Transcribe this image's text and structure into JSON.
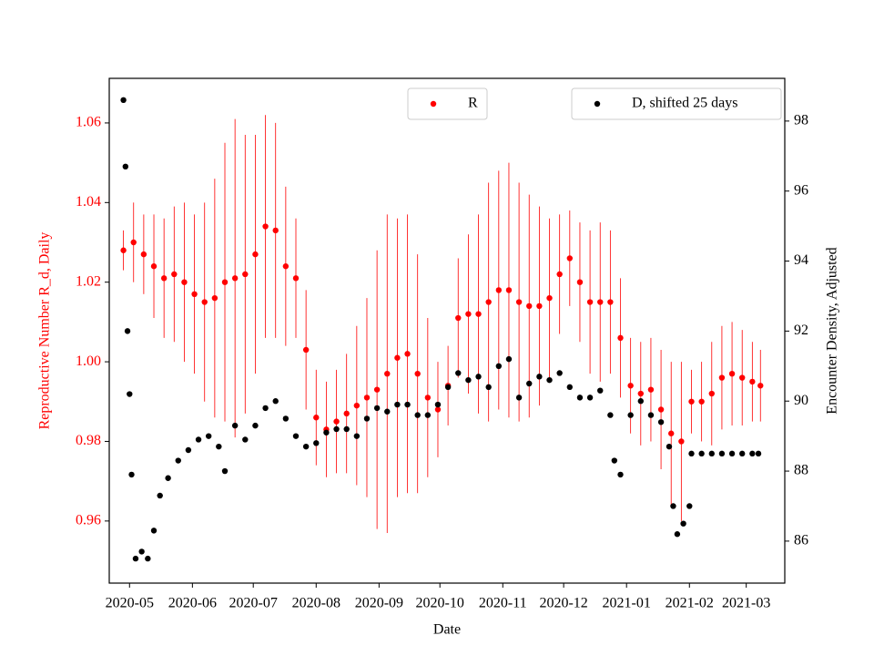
{
  "chart_data": {
    "type": "scatter",
    "x_label": "Date",
    "y_label": "Reproductive Number R_d, Daily",
    "y2_label": "Encounter Density, Adjusted",
    "xlim": [
      "2020-04-21",
      "2021-03-20"
    ],
    "xticks": [
      "2020-05",
      "2020-06",
      "2020-07",
      "2020-08",
      "2020-09",
      "2020-10",
      "2020-11",
      "2020-12",
      "2021-01",
      "2021-02",
      "2021-03"
    ],
    "ylim": [
      0.9444,
      1.0712
    ],
    "yticks": [
      0.96,
      0.98,
      {
        "value": 1.0,
        "label": "1.00"
      },
      1.02,
      1.04,
      1.06
    ],
    "y2lim": [
      84.8,
      99.22
    ],
    "y2ticks": [
      86,
      88,
      90,
      92,
      94,
      96,
      98
    ],
    "y_color": "#ff0000",
    "series": [
      {
        "name": "R",
        "color": "#ff0000",
        "legend": "upper center",
        "x": [
          "2020-04-28",
          "2020-05-03",
          "2020-05-08",
          "2020-05-13",
          "2020-05-18",
          "2020-05-23",
          "2020-05-28",
          "2020-06-02",
          "2020-06-07",
          "2020-06-12",
          "2020-06-17",
          "2020-06-22",
          "2020-06-27",
          "2020-07-02",
          "2020-07-07",
          "2020-07-12",
          "2020-07-17",
          "2020-07-22",
          "2020-07-27",
          "2020-08-01",
          "2020-08-06",
          "2020-08-11",
          "2020-08-16",
          "2020-08-21",
          "2020-08-26",
          "2020-08-31",
          "2020-09-05",
          "2020-09-10",
          "2020-09-15",
          "2020-09-20",
          "2020-09-25",
          "2020-09-30",
          "2020-10-05",
          "2020-10-10",
          "2020-10-15",
          "2020-10-20",
          "2020-10-25",
          "2020-10-30",
          "2020-11-04",
          "2020-11-09",
          "2020-11-14",
          "2020-11-19",
          "2020-11-24",
          "2020-11-29",
          "2020-12-04",
          "2020-12-09",
          "2020-12-14",
          "2020-12-19",
          "2020-12-24",
          "2020-12-29",
          "2021-01-03",
          "2021-01-08",
          "2021-01-13",
          "2021-01-18",
          "2021-01-23",
          "2021-01-28",
          "2021-02-02",
          "2021-02-07",
          "2021-02-12",
          "2021-02-17",
          "2021-02-22",
          "2021-02-27",
          "2021-03-04",
          "2021-03-08"
        ],
        "values": [
          1.028,
          1.03,
          1.027,
          1.024,
          1.021,
          1.022,
          1.02,
          1.017,
          1.015,
          1.016,
          1.02,
          1.021,
          1.022,
          1.027,
          1.034,
          1.033,
          1.024,
          1.021,
          1.003,
          0.986,
          0.983,
          0.985,
          0.987,
          0.989,
          0.991,
          0.993,
          0.997,
          1.001,
          1.002,
          0.997,
          0.991,
          0.988,
          0.994,
          1.011,
          1.012,
          1.012,
          1.015,
          1.018,
          1.018,
          1.015,
          1.014,
          1.014,
          1.016,
          1.022,
          1.026,
          1.02,
          1.015,
          1.015,
          1.015,
          1.006,
          0.994,
          0.992,
          0.993,
          0.988,
          0.982,
          0.98,
          0.99,
          0.99,
          0.992,
          0.996,
          0.997,
          0.996,
          0.995,
          0.994
        ],
        "errors": [
          0.005,
          0.01,
          0.01,
          0.013,
          0.015,
          0.017,
          0.02,
          0.02,
          0.025,
          0.03,
          0.035,
          0.04,
          0.035,
          0.03,
          0.028,
          0.027,
          0.02,
          0.015,
          0.015,
          0.012,
          0.012,
          0.013,
          0.015,
          0.02,
          0.025,
          0.035,
          0.04,
          0.035,
          0.035,
          0.03,
          0.02,
          0.012,
          0.01,
          0.015,
          0.02,
          0.025,
          0.03,
          0.03,
          0.032,
          0.03,
          0.028,
          0.025,
          0.02,
          0.015,
          0.012,
          0.015,
          0.018,
          0.02,
          0.018,
          0.015,
          0.012,
          0.013,
          0.013,
          0.015,
          0.018,
          0.02,
          0.008,
          0.01,
          0.013,
          0.013,
          0.013,
          0.012,
          0.01,
          0.009
        ]
      },
      {
        "name": "D, shifted 25 days",
        "color": "#000000",
        "axis": "y2",
        "legend": "upper right",
        "x": [
          "2020-04-28",
          "2020-04-29",
          "2020-04-30",
          "2020-05-01",
          "2020-05-02",
          "2020-05-04",
          "2020-05-07",
          "2020-05-10",
          "2020-05-13",
          "2020-05-16",
          "2020-05-20",
          "2020-05-25",
          "2020-05-30",
          "2020-06-04",
          "2020-06-09",
          "2020-06-14",
          "2020-06-17",
          "2020-06-22",
          "2020-06-27",
          "2020-07-02",
          "2020-07-07",
          "2020-07-12",
          "2020-07-17",
          "2020-07-22",
          "2020-07-27",
          "2020-08-01",
          "2020-08-06",
          "2020-08-11",
          "2020-08-16",
          "2020-08-21",
          "2020-08-26",
          "2020-08-31",
          "2020-09-05",
          "2020-09-10",
          "2020-09-15",
          "2020-09-20",
          "2020-09-25",
          "2020-09-30",
          "2020-10-05",
          "2020-10-10",
          "2020-10-15",
          "2020-10-20",
          "2020-10-25",
          "2020-10-30",
          "2020-11-04",
          "2020-11-09",
          "2020-11-14",
          "2020-11-19",
          "2020-11-24",
          "2020-11-29",
          "2020-12-04",
          "2020-12-09",
          "2020-12-14",
          "2020-12-19",
          "2020-12-24",
          "2020-12-26",
          "2020-12-29",
          "2021-01-03",
          "2021-01-08",
          "2021-01-13",
          "2021-01-18",
          "2021-01-22",
          "2021-01-24",
          "2021-01-26",
          "2021-01-29",
          "2021-02-01",
          "2021-02-02",
          "2021-02-07",
          "2021-02-12",
          "2021-02-17",
          "2021-02-22",
          "2021-02-27",
          "2021-03-04",
          "2021-03-07"
        ],
        "values": [
          98.6,
          96.7,
          92.0,
          90.2,
          87.9,
          85.5,
          85.7,
          85.5,
          86.3,
          87.3,
          87.8,
          88.3,
          88.6,
          88.9,
          89.0,
          88.7,
          88.0,
          89.3,
          88.9,
          89.3,
          89.8,
          90.0,
          89.5,
          89.0,
          88.7,
          88.8,
          89.1,
          89.2,
          89.2,
          89.0,
          89.5,
          89.8,
          89.7,
          89.9,
          89.9,
          89.6,
          89.6,
          89.9,
          90.4,
          90.8,
          90.6,
          90.7,
          90.4,
          91.0,
          91.2,
          90.1,
          90.5,
          90.7,
          90.6,
          90.8,
          90.4,
          90.1,
          90.1,
          90.3,
          89.6,
          88.3,
          87.9,
          89.6,
          90.0,
          89.6,
          89.4,
          88.7,
          87.0,
          86.2,
          86.5,
          87.0,
          88.5,
          88.5,
          88.5,
          88.5,
          88.5,
          88.5,
          88.5,
          88.5
        ]
      }
    ]
  }
}
